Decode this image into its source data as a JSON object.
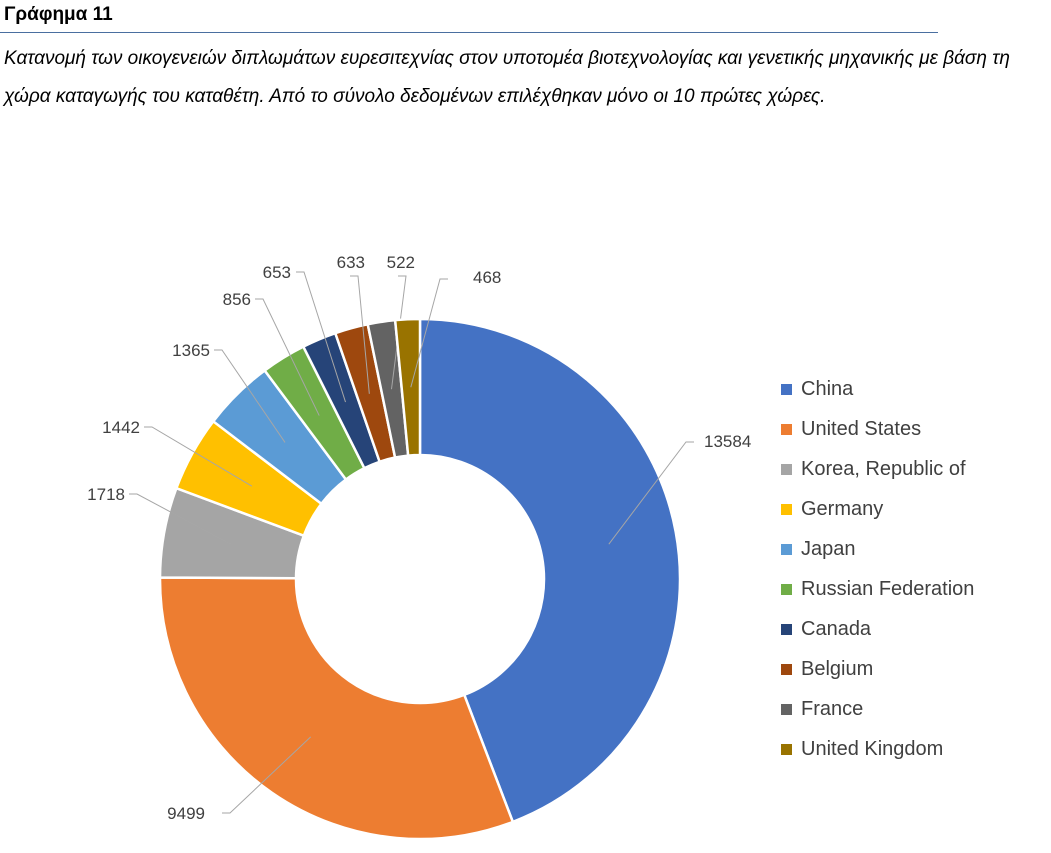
{
  "figure_label": "Γράφημα 11",
  "caption": "Κατανομή των οικογενειών διπλωμάτων ευρεσιτεχνίας στον υποτομέα βιοτεχνολογίας και γενετικής μηχανικής με βάση τη χώρα καταγωγής του καταθέτη. Από το σύνολο δεδομένων επιλέχθηκαν μόνο οι 10 πρώτες χώρες.",
  "chart_data": {
    "type": "pie",
    "variant": "donut",
    "title": "",
    "legend_position": "right",
    "categories": [
      "China",
      "United States",
      "Korea, Republic of",
      "Germany",
      "Japan",
      "Russian Federation",
      "Canada",
      "Belgium",
      "France",
      "United Kingdom"
    ],
    "values": [
      13584,
      9499,
      1718,
      1442,
      1365,
      856,
      653,
      633,
      522,
      468
    ],
    "labels": [
      "13584",
      "9499",
      "1718",
      "1442",
      "1365",
      "856",
      "653",
      "633",
      "522",
      "468"
    ],
    "colors": [
      "#4472C4",
      "#ED7D31",
      "#A5A5A5",
      "#FFC000",
      "#5B9BD5",
      "#70AD47",
      "#264478",
      "#9E480E",
      "#636363",
      "#997300"
    ]
  }
}
